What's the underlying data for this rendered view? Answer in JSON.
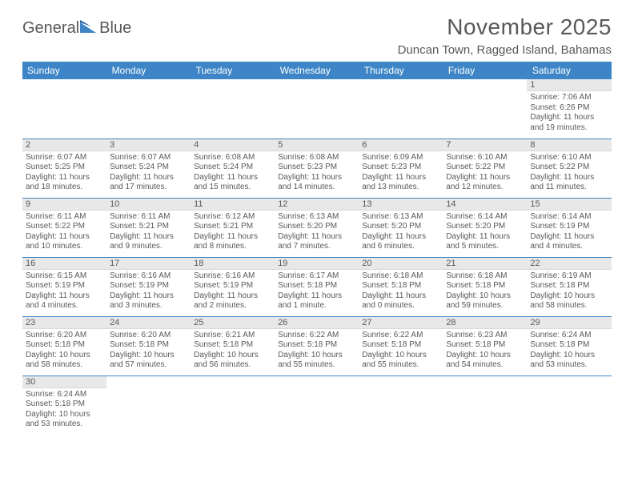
{
  "brand": {
    "part1": "General",
    "part2": "Blue",
    "accent_color": "#3d85c6"
  },
  "title": "November 2025",
  "location": "Duncan Town, Ragged Island, Bahamas",
  "colors": {
    "header_bg": "#3d85c6",
    "header_text": "#ffffff",
    "daynum_bg": "#e8e8e8",
    "text": "#595959",
    "row_border": "#3d85c6",
    "background": "#ffffff"
  },
  "fonts": {
    "title_size": 28,
    "location_size": 15,
    "th_size": 12,
    "daynum_size": 11,
    "body_size": 10
  },
  "weekdays": [
    "Sunday",
    "Monday",
    "Tuesday",
    "Wednesday",
    "Thursday",
    "Friday",
    "Saturday"
  ],
  "weeks": [
    [
      null,
      null,
      null,
      null,
      null,
      null,
      {
        "n": "1",
        "sunrise": "Sunrise: 7:06 AM",
        "sunset": "Sunset: 6:26 PM",
        "day1": "Daylight: 11 hours",
        "day2": "and 19 minutes."
      }
    ],
    [
      {
        "n": "2",
        "sunrise": "Sunrise: 6:07 AM",
        "sunset": "Sunset: 5:25 PM",
        "day1": "Daylight: 11 hours",
        "day2": "and 18 minutes."
      },
      {
        "n": "3",
        "sunrise": "Sunrise: 6:07 AM",
        "sunset": "Sunset: 5:24 PM",
        "day1": "Daylight: 11 hours",
        "day2": "and 17 minutes."
      },
      {
        "n": "4",
        "sunrise": "Sunrise: 6:08 AM",
        "sunset": "Sunset: 5:24 PM",
        "day1": "Daylight: 11 hours",
        "day2": "and 15 minutes."
      },
      {
        "n": "5",
        "sunrise": "Sunrise: 6:08 AM",
        "sunset": "Sunset: 5:23 PM",
        "day1": "Daylight: 11 hours",
        "day2": "and 14 minutes."
      },
      {
        "n": "6",
        "sunrise": "Sunrise: 6:09 AM",
        "sunset": "Sunset: 5:23 PM",
        "day1": "Daylight: 11 hours",
        "day2": "and 13 minutes."
      },
      {
        "n": "7",
        "sunrise": "Sunrise: 6:10 AM",
        "sunset": "Sunset: 5:22 PM",
        "day1": "Daylight: 11 hours",
        "day2": "and 12 minutes."
      },
      {
        "n": "8",
        "sunrise": "Sunrise: 6:10 AM",
        "sunset": "Sunset: 5:22 PM",
        "day1": "Daylight: 11 hours",
        "day2": "and 11 minutes."
      }
    ],
    [
      {
        "n": "9",
        "sunrise": "Sunrise: 6:11 AM",
        "sunset": "Sunset: 5:22 PM",
        "day1": "Daylight: 11 hours",
        "day2": "and 10 minutes."
      },
      {
        "n": "10",
        "sunrise": "Sunrise: 6:11 AM",
        "sunset": "Sunset: 5:21 PM",
        "day1": "Daylight: 11 hours",
        "day2": "and 9 minutes."
      },
      {
        "n": "11",
        "sunrise": "Sunrise: 6:12 AM",
        "sunset": "Sunset: 5:21 PM",
        "day1": "Daylight: 11 hours",
        "day2": "and 8 minutes."
      },
      {
        "n": "12",
        "sunrise": "Sunrise: 6:13 AM",
        "sunset": "Sunset: 5:20 PM",
        "day1": "Daylight: 11 hours",
        "day2": "and 7 minutes."
      },
      {
        "n": "13",
        "sunrise": "Sunrise: 6:13 AM",
        "sunset": "Sunset: 5:20 PM",
        "day1": "Daylight: 11 hours",
        "day2": "and 6 minutes."
      },
      {
        "n": "14",
        "sunrise": "Sunrise: 6:14 AM",
        "sunset": "Sunset: 5:20 PM",
        "day1": "Daylight: 11 hours",
        "day2": "and 5 minutes."
      },
      {
        "n": "15",
        "sunrise": "Sunrise: 6:14 AM",
        "sunset": "Sunset: 5:19 PM",
        "day1": "Daylight: 11 hours",
        "day2": "and 4 minutes."
      }
    ],
    [
      {
        "n": "16",
        "sunrise": "Sunrise: 6:15 AM",
        "sunset": "Sunset: 5:19 PM",
        "day1": "Daylight: 11 hours",
        "day2": "and 4 minutes."
      },
      {
        "n": "17",
        "sunrise": "Sunrise: 6:16 AM",
        "sunset": "Sunset: 5:19 PM",
        "day1": "Daylight: 11 hours",
        "day2": "and 3 minutes."
      },
      {
        "n": "18",
        "sunrise": "Sunrise: 6:16 AM",
        "sunset": "Sunset: 5:19 PM",
        "day1": "Daylight: 11 hours",
        "day2": "and 2 minutes."
      },
      {
        "n": "19",
        "sunrise": "Sunrise: 6:17 AM",
        "sunset": "Sunset: 5:18 PM",
        "day1": "Daylight: 11 hours",
        "day2": "and 1 minute."
      },
      {
        "n": "20",
        "sunrise": "Sunrise: 6:18 AM",
        "sunset": "Sunset: 5:18 PM",
        "day1": "Daylight: 11 hours",
        "day2": "and 0 minutes."
      },
      {
        "n": "21",
        "sunrise": "Sunrise: 6:18 AM",
        "sunset": "Sunset: 5:18 PM",
        "day1": "Daylight: 10 hours",
        "day2": "and 59 minutes."
      },
      {
        "n": "22",
        "sunrise": "Sunrise: 6:19 AM",
        "sunset": "Sunset: 5:18 PM",
        "day1": "Daylight: 10 hours",
        "day2": "and 58 minutes."
      }
    ],
    [
      {
        "n": "23",
        "sunrise": "Sunrise: 6:20 AM",
        "sunset": "Sunset: 5:18 PM",
        "day1": "Daylight: 10 hours",
        "day2": "and 58 minutes."
      },
      {
        "n": "24",
        "sunrise": "Sunrise: 6:20 AM",
        "sunset": "Sunset: 5:18 PM",
        "day1": "Daylight: 10 hours",
        "day2": "and 57 minutes."
      },
      {
        "n": "25",
        "sunrise": "Sunrise: 6:21 AM",
        "sunset": "Sunset: 5:18 PM",
        "day1": "Daylight: 10 hours",
        "day2": "and 56 minutes."
      },
      {
        "n": "26",
        "sunrise": "Sunrise: 6:22 AM",
        "sunset": "Sunset: 5:18 PM",
        "day1": "Daylight: 10 hours",
        "day2": "and 55 minutes."
      },
      {
        "n": "27",
        "sunrise": "Sunrise: 6:22 AM",
        "sunset": "Sunset: 5:18 PM",
        "day1": "Daylight: 10 hours",
        "day2": "and 55 minutes."
      },
      {
        "n": "28",
        "sunrise": "Sunrise: 6:23 AM",
        "sunset": "Sunset: 5:18 PM",
        "day1": "Daylight: 10 hours",
        "day2": "and 54 minutes."
      },
      {
        "n": "29",
        "sunrise": "Sunrise: 6:24 AM",
        "sunset": "Sunset: 5:18 PM",
        "day1": "Daylight: 10 hours",
        "day2": "and 53 minutes."
      }
    ],
    [
      {
        "n": "30",
        "sunrise": "Sunrise: 6:24 AM",
        "sunset": "Sunset: 5:18 PM",
        "day1": "Daylight: 10 hours",
        "day2": "and 53 minutes."
      },
      null,
      null,
      null,
      null,
      null,
      null
    ]
  ]
}
